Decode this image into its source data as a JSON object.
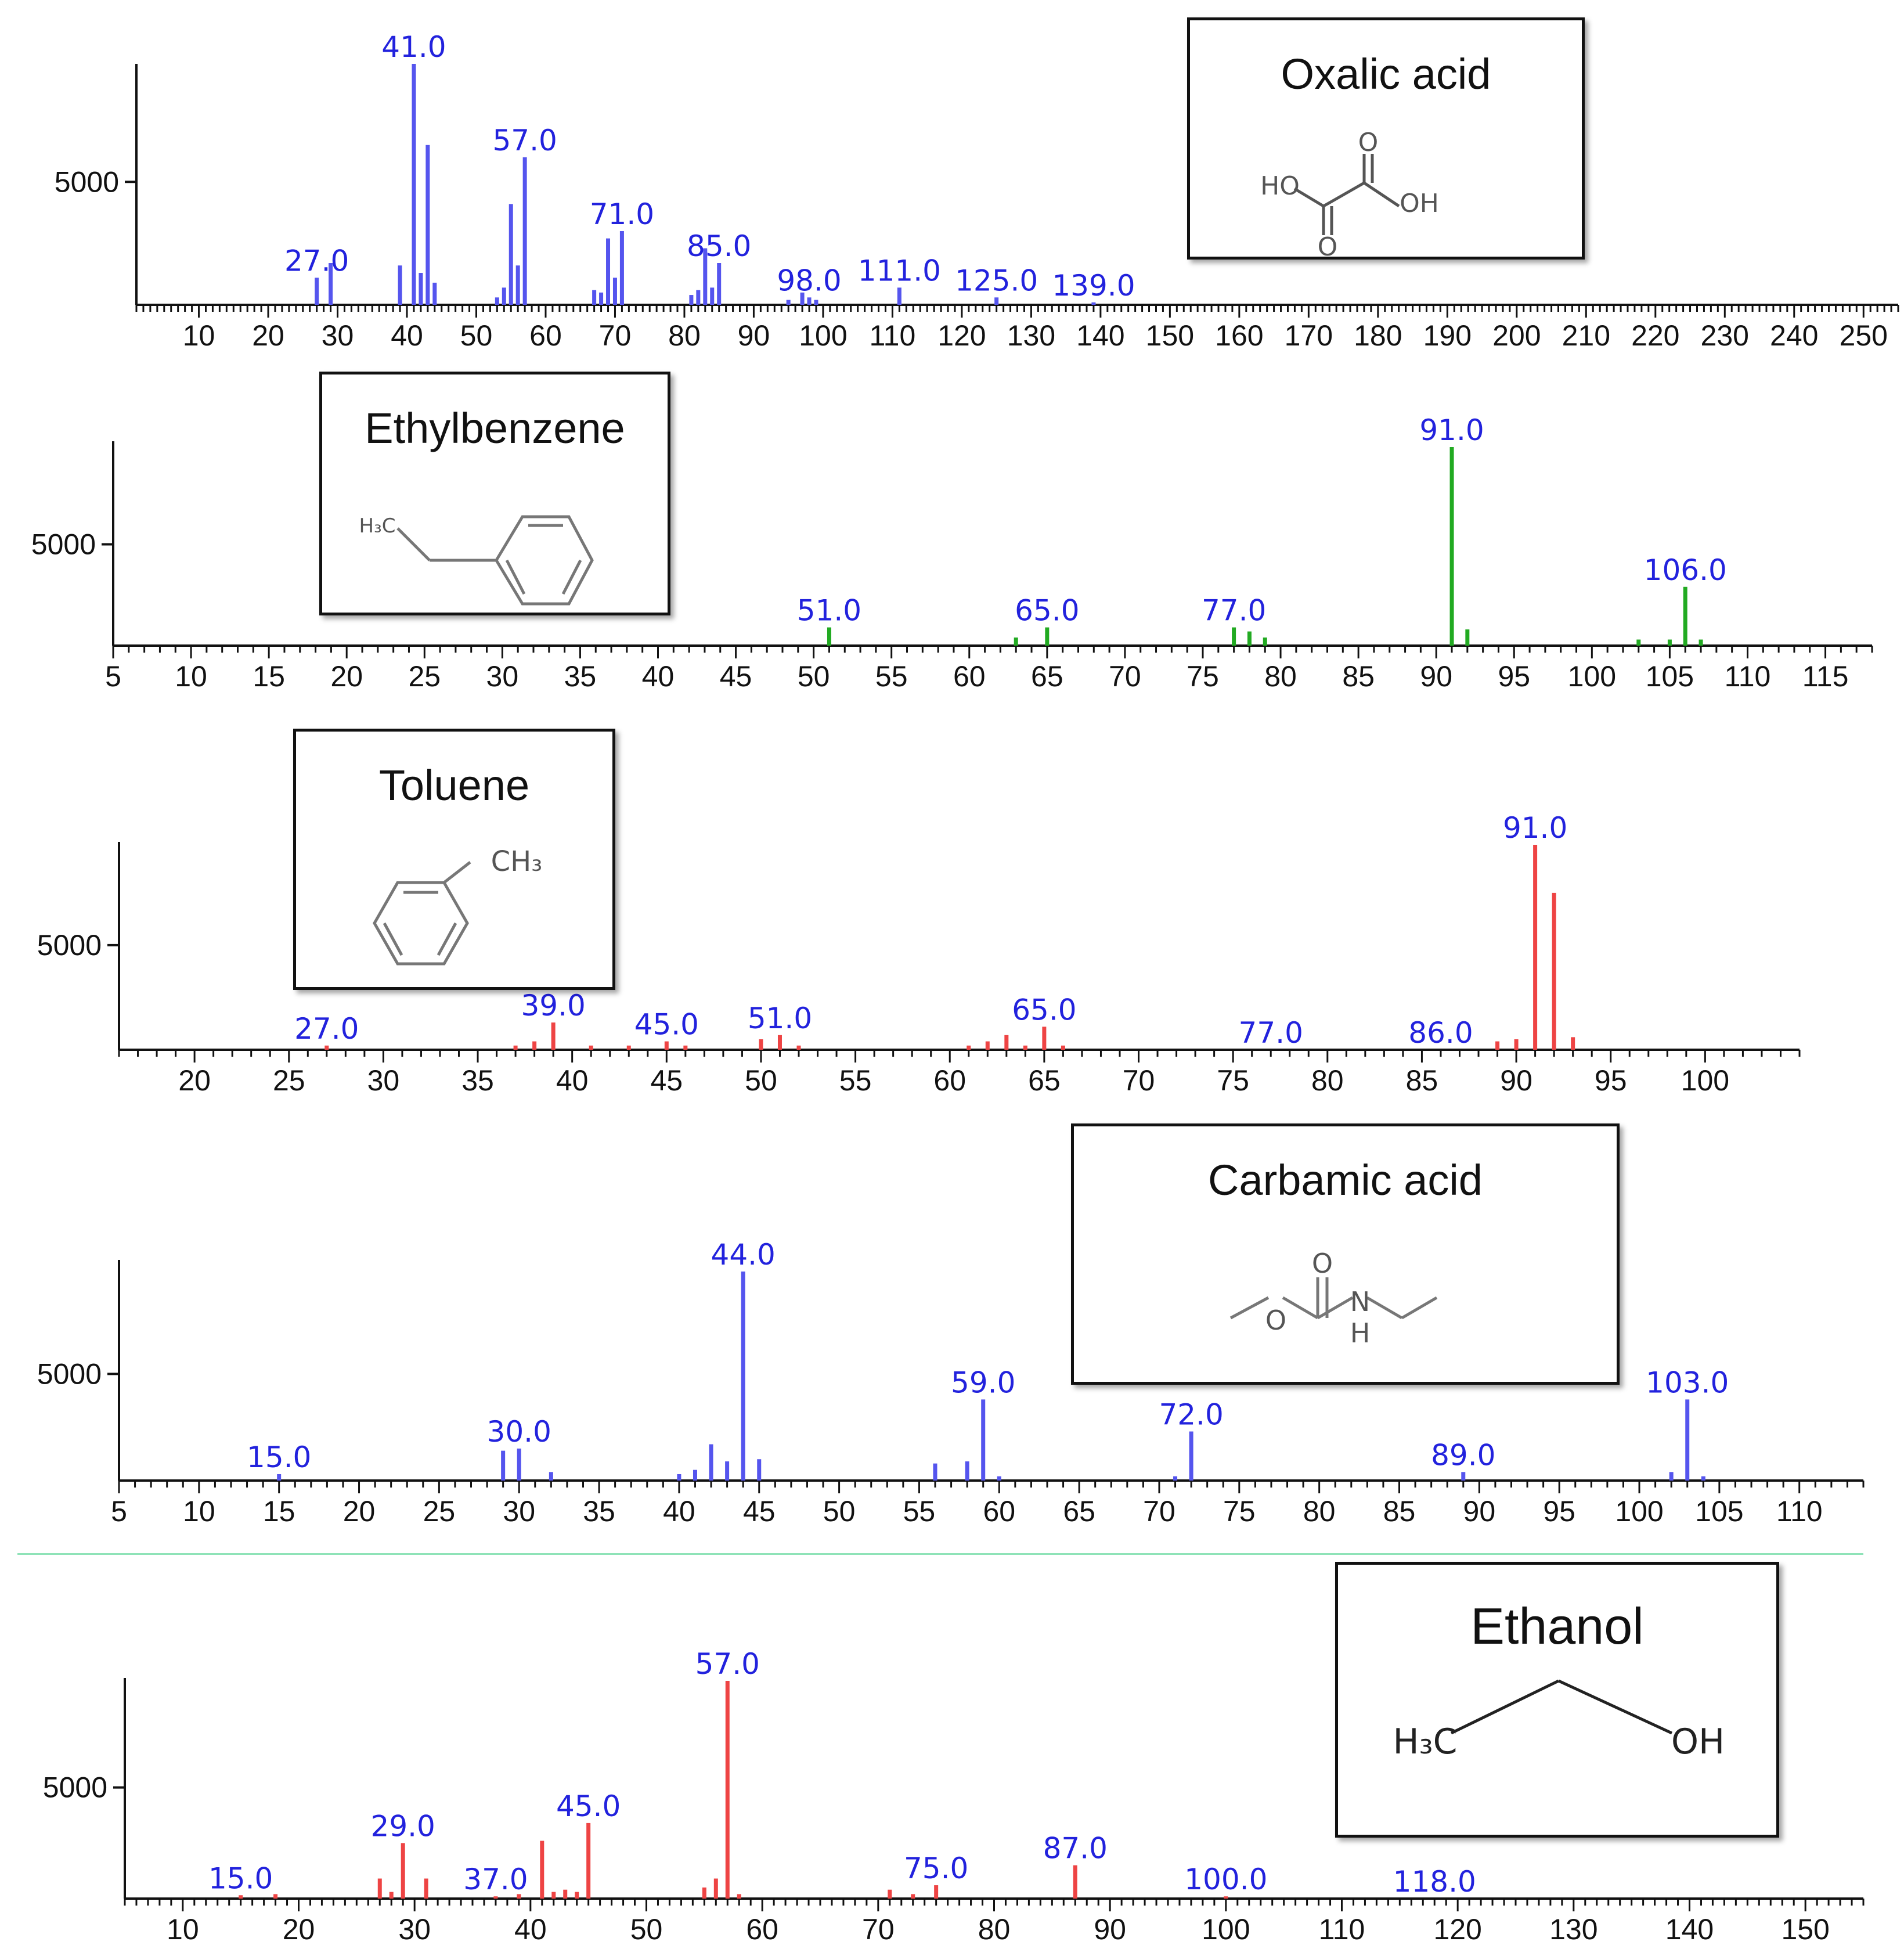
{
  "chart_data": [
    {
      "type": "bar",
      "title": "Oxalic acid",
      "color": "#5555ee",
      "label_color": "#2222dd",
      "xlim": [
        1,
        255
      ],
      "ylim": [
        0,
        9800
      ],
      "x_ticks": [
        10,
        20,
        30,
        40,
        50,
        60,
        70,
        80,
        90,
        100,
        110,
        120,
        130,
        140,
        150,
        160,
        170,
        180,
        190,
        200,
        210,
        220,
        230,
        240,
        250
      ],
      "y_ticks": [
        5000
      ],
      "peaks": [
        {
          "mz": 27,
          "i": 1100
        },
        {
          "mz": 29,
          "i": 1700
        },
        {
          "mz": 39,
          "i": 1600
        },
        {
          "mz": 41,
          "i": 9800
        },
        {
          "mz": 42,
          "i": 1300
        },
        {
          "mz": 43,
          "i": 6500
        },
        {
          "mz": 44,
          "i": 900
        },
        {
          "mz": 53,
          "i": 300
        },
        {
          "mz": 54,
          "i": 700
        },
        {
          "mz": 55,
          "i": 4100
        },
        {
          "mz": 56,
          "i": 1600
        },
        {
          "mz": 57,
          "i": 6000
        },
        {
          "mz": 67,
          "i": 600
        },
        {
          "mz": 68,
          "i": 500
        },
        {
          "mz": 69,
          "i": 2700
        },
        {
          "mz": 70,
          "i": 1100
        },
        {
          "mz": 71,
          "i": 3000
        },
        {
          "mz": 81,
          "i": 400
        },
        {
          "mz": 82,
          "i": 600
        },
        {
          "mz": 83,
          "i": 2300
        },
        {
          "mz": 84,
          "i": 700
        },
        {
          "mz": 85,
          "i": 1700
        },
        {
          "mz": 95,
          "i": 200
        },
        {
          "mz": 97,
          "i": 500
        },
        {
          "mz": 98,
          "i": 300
        },
        {
          "mz": 99,
          "i": 200
        },
        {
          "mz": 111,
          "i": 700
        },
        {
          "mz": 125,
          "i": 300
        },
        {
          "mz": 139,
          "i": 100
        }
      ],
      "labels": [
        {
          "mz": 27,
          "text": "27.0"
        },
        {
          "mz": 41,
          "text": "41.0"
        },
        {
          "mz": 57,
          "text": "57.0"
        },
        {
          "mz": 71,
          "text": "71.0"
        },
        {
          "mz": 85,
          "text": "85.0"
        },
        {
          "mz": 98,
          "text": "98.0"
        },
        {
          "mz": 111,
          "text": "111.0"
        },
        {
          "mz": 125,
          "text": "125.0"
        },
        {
          "mz": 139,
          "text": "139.0"
        }
      ]
    },
    {
      "type": "bar",
      "title": "Ethylbenzene",
      "color": "#22aa22",
      "label_color": "#2222dd",
      "xlim": [
        5,
        118
      ],
      "ylim": [
        0,
        9800
      ],
      "x_ticks": [
        5,
        10,
        15,
        20,
        25,
        30,
        35,
        40,
        45,
        50,
        55,
        60,
        65,
        70,
        75,
        80,
        85,
        90,
        95,
        100,
        105,
        110,
        115
      ],
      "y_ticks": [
        5000
      ],
      "peaks": [
        {
          "mz": 51,
          "i": 900
        },
        {
          "mz": 63,
          "i": 400
        },
        {
          "mz": 65,
          "i": 900
        },
        {
          "mz": 77,
          "i": 900
        },
        {
          "mz": 78,
          "i": 700
        },
        {
          "mz": 79,
          "i": 400
        },
        {
          "mz": 91,
          "i": 9800
        },
        {
          "mz": 92,
          "i": 800
        },
        {
          "mz": 103,
          "i": 300
        },
        {
          "mz": 105,
          "i": 300
        },
        {
          "mz": 106,
          "i": 2900
        },
        {
          "mz": 107,
          "i": 300
        }
      ],
      "labels": [
        {
          "mz": 51,
          "text": "51.0"
        },
        {
          "mz": 65,
          "text": "65.0"
        },
        {
          "mz": 77,
          "text": "77.0"
        },
        {
          "mz": 91,
          "text": "91.0"
        },
        {
          "mz": 106,
          "text": "106.0"
        }
      ]
    },
    {
      "type": "bar",
      "title": "Toluene",
      "color": "#ee4444",
      "label_color": "#2222dd",
      "xlim": [
        16,
        105
      ],
      "ylim": [
        0,
        9800
      ],
      "x_ticks": [
        20,
        25,
        30,
        35,
        40,
        45,
        50,
        55,
        60,
        65,
        70,
        75,
        80,
        85,
        90,
        95,
        100
      ],
      "y_ticks": [
        5000
      ],
      "peaks": [
        {
          "mz": 27,
          "i": 200
        },
        {
          "mz": 37,
          "i": 200
        },
        {
          "mz": 38,
          "i": 400
        },
        {
          "mz": 39,
          "i": 1300
        },
        {
          "mz": 41,
          "i": 200
        },
        {
          "mz": 43,
          "i": 200
        },
        {
          "mz": 45,
          "i": 400
        },
        {
          "mz": 46,
          "i": 200
        },
        {
          "mz": 50,
          "i": 500
        },
        {
          "mz": 51,
          "i": 700
        },
        {
          "mz": 52,
          "i": 200
        },
        {
          "mz": 61,
          "i": 200
        },
        {
          "mz": 62,
          "i": 400
        },
        {
          "mz": 63,
          "i": 700
        },
        {
          "mz": 64,
          "i": 200
        },
        {
          "mz": 65,
          "i": 1100
        },
        {
          "mz": 66,
          "i": 200
        },
        {
          "mz": 89,
          "i": 400
        },
        {
          "mz": 90,
          "i": 500
        },
        {
          "mz": 91,
          "i": 9800
        },
        {
          "mz": 92,
          "i": 7500
        },
        {
          "mz": 93,
          "i": 600
        }
      ],
      "labels": [
        {
          "mz": 27,
          "text": "27.0"
        },
        {
          "mz": 39,
          "text": "39.0"
        },
        {
          "mz": 45,
          "text": "45.0"
        },
        {
          "mz": 51,
          "text": "51.0"
        },
        {
          "mz": 65,
          "text": "65.0"
        },
        {
          "mz": 77,
          "text": "77.0"
        },
        {
          "mz": 86,
          "text": "86.0"
        },
        {
          "mz": 91,
          "text": "91.0"
        }
      ]
    },
    {
      "type": "bar",
      "title": "Carbamic acid",
      "color": "#5555ee",
      "label_color": "#2222dd",
      "xlim": [
        5,
        114
      ],
      "ylim": [
        0,
        9800
      ],
      "x_ticks": [
        5,
        10,
        15,
        20,
        25,
        30,
        35,
        40,
        45,
        50,
        55,
        60,
        65,
        70,
        75,
        80,
        85,
        90,
        95,
        100,
        105,
        110
      ],
      "y_ticks": [
        5000
      ],
      "peaks": [
        {
          "mz": 15,
          "i": 300
        },
        {
          "mz": 29,
          "i": 1400
        },
        {
          "mz": 30,
          "i": 1500
        },
        {
          "mz": 32,
          "i": 400
        },
        {
          "mz": 40,
          "i": 300
        },
        {
          "mz": 41,
          "i": 500
        },
        {
          "mz": 42,
          "i": 1700
        },
        {
          "mz": 43,
          "i": 900
        },
        {
          "mz": 44,
          "i": 9800
        },
        {
          "mz": 45,
          "i": 1000
        },
        {
          "mz": 56,
          "i": 800
        },
        {
          "mz": 58,
          "i": 900
        },
        {
          "mz": 59,
          "i": 3800
        },
        {
          "mz": 60,
          "i": 200
        },
        {
          "mz": 71,
          "i": 200
        },
        {
          "mz": 72,
          "i": 2300
        },
        {
          "mz": 89,
          "i": 400
        },
        {
          "mz": 102,
          "i": 400
        },
        {
          "mz": 103,
          "i": 3800
        },
        {
          "mz": 104,
          "i": 200
        }
      ],
      "labels": [
        {
          "mz": 15,
          "text": "15.0"
        },
        {
          "mz": 30,
          "text": "30.0"
        },
        {
          "mz": 44,
          "text": "44.0"
        },
        {
          "mz": 59,
          "text": "59.0"
        },
        {
          "mz": 72,
          "text": "72.0"
        },
        {
          "mz": 89,
          "text": "89.0"
        },
        {
          "mz": 103,
          "text": "103.0"
        }
      ]
    },
    {
      "type": "bar",
      "title": "Ethanol",
      "color": "#ee4444",
      "label_color": "#2222dd",
      "xlim": [
        5,
        155
      ],
      "ylim": [
        0,
        9800
      ],
      "x_ticks": [
        10,
        20,
        30,
        40,
        50,
        60,
        70,
        80,
        90,
        100,
        110,
        120,
        130,
        140,
        150
      ],
      "y_ticks": [
        5000
      ],
      "peaks": [
        {
          "mz": 15,
          "i": 150
        },
        {
          "mz": 18,
          "i": 200
        },
        {
          "mz": 27,
          "i": 900
        },
        {
          "mz": 28,
          "i": 300
        },
        {
          "mz": 29,
          "i": 2500
        },
        {
          "mz": 31,
          "i": 900
        },
        {
          "mz": 37,
          "i": 100
        },
        {
          "mz": 39,
          "i": 200
        },
        {
          "mz": 41,
          "i": 2600
        },
        {
          "mz": 42,
          "i": 300
        },
        {
          "mz": 43,
          "i": 400
        },
        {
          "mz": 44,
          "i": 300
        },
        {
          "mz": 45,
          "i": 3400
        },
        {
          "mz": 55,
          "i": 500
        },
        {
          "mz": 56,
          "i": 900
        },
        {
          "mz": 57,
          "i": 9800
        },
        {
          "mz": 58,
          "i": 200
        },
        {
          "mz": 71,
          "i": 400
        },
        {
          "mz": 73,
          "i": 200
        },
        {
          "mz": 75,
          "i": 600
        },
        {
          "mz": 87,
          "i": 1500
        },
        {
          "mz": 100,
          "i": 100
        }
      ],
      "labels": [
        {
          "mz": 15,
          "text": "15.0"
        },
        {
          "mz": 29,
          "text": "29.0"
        },
        {
          "mz": 37,
          "text": "37.0"
        },
        {
          "mz": 45,
          "text": "45.0"
        },
        {
          "mz": 57,
          "text": "57.0"
        },
        {
          "mz": 75,
          "text": "75.0"
        },
        {
          "mz": 87,
          "text": "87.0"
        },
        {
          "mz": 100,
          "text": "100.0"
        },
        {
          "mz": 118,
          "text": "118.0"
        }
      ]
    }
  ],
  "structures": {
    "oxalic": {
      "ho_left": "HO",
      "oh_right": "OH",
      "o_top": "O",
      "o_bottom": "O"
    },
    "ethylbenzene": {
      "group": "H₃C"
    },
    "toluene": {
      "group": "CH₃"
    },
    "carbamic": {
      "o_top": "O",
      "o_left": "O",
      "n": "N",
      "h": "H"
    },
    "ethanol": {
      "left": "H₃C",
      "right": "OH"
    }
  }
}
